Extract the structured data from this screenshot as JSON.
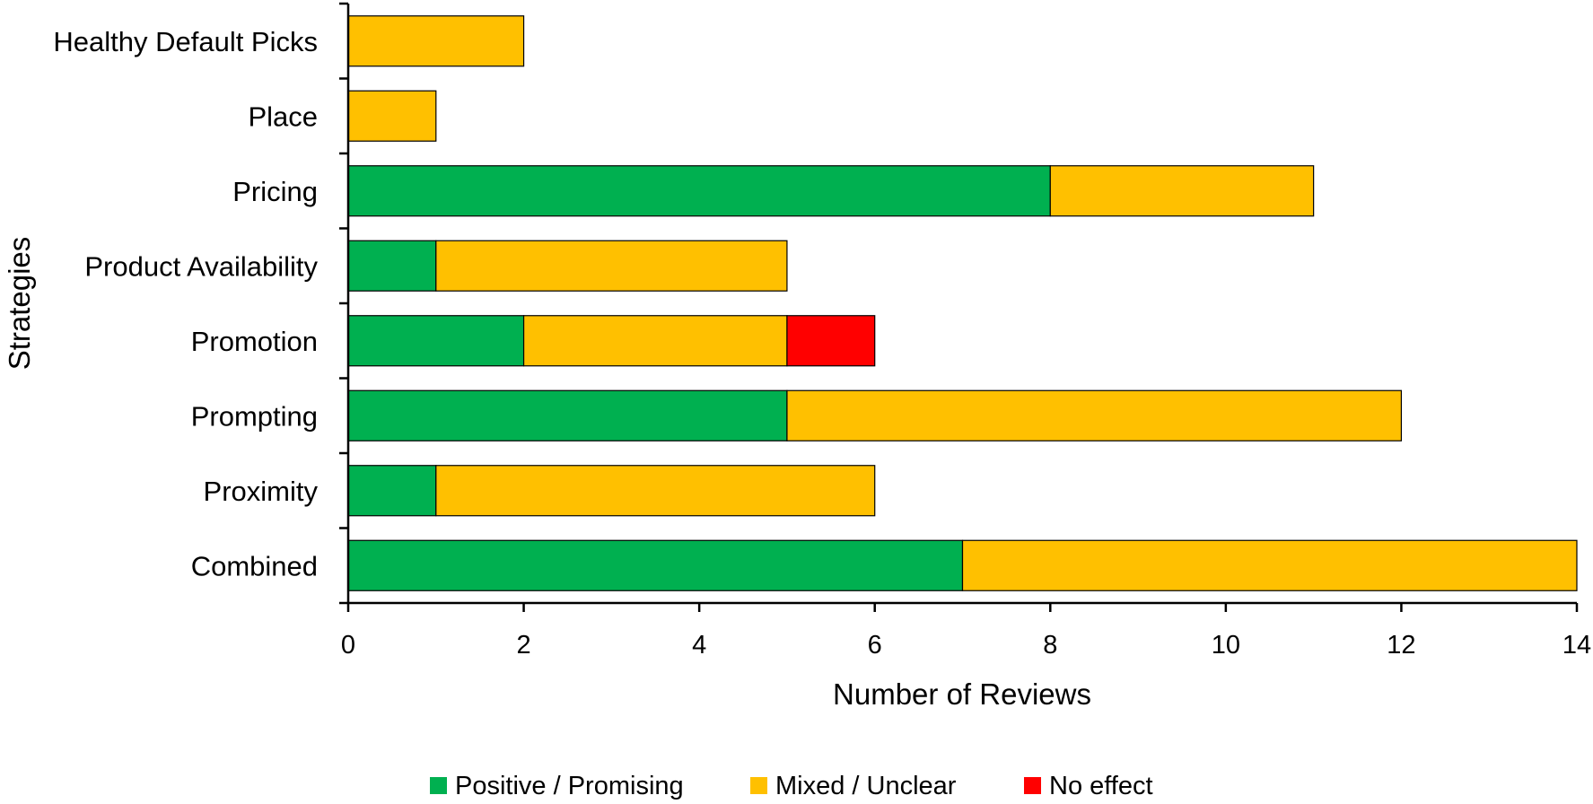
{
  "chart_data": {
    "type": "bar",
    "orientation": "horizontal",
    "stacked": true,
    "categories": [
      "Healthy Default Picks",
      "Place",
      "Pricing",
      "Product Availability",
      "Promotion",
      "Prompting",
      "Proximity",
      "Combined"
    ],
    "series": [
      {
        "name": "Positive / Promising",
        "color": "#00B050",
        "values": [
          0,
          0,
          8,
          1,
          2,
          5,
          1,
          7
        ]
      },
      {
        "name": "Mixed / Unclear",
        "color": "#FFC000",
        "values": [
          2,
          1,
          3,
          4,
          3,
          7,
          5,
          7
        ]
      },
      {
        "name": "No effect",
        "color": "#FF0000",
        "values": [
          0,
          0,
          0,
          0,
          1,
          0,
          0,
          0
        ]
      }
    ],
    "xlabel": "Number of Reviews",
    "ylabel": "Strategies",
    "xlim": [
      0,
      14
    ],
    "xticks": [
      0,
      2,
      4,
      6,
      8,
      10,
      12,
      14
    ],
    "grid": false,
    "legend": "bottom"
  }
}
